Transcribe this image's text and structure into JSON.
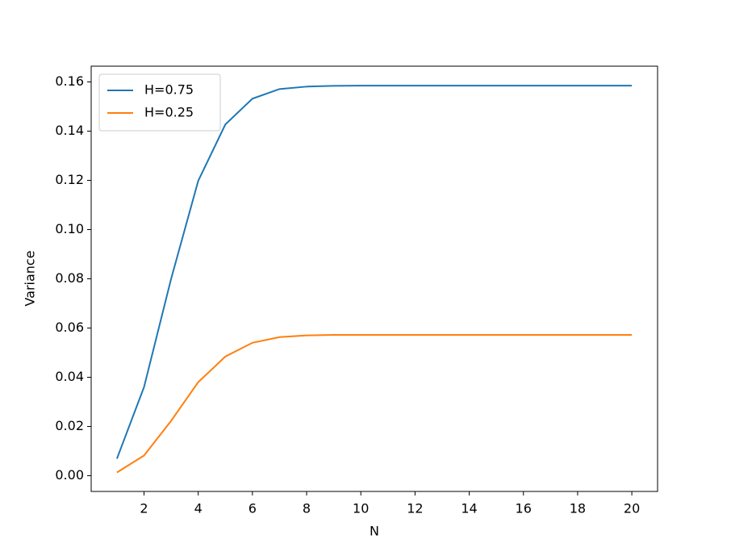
{
  "chart_data": {
    "type": "line",
    "x_label": "N",
    "y_label": "Variance",
    "x": [
      1,
      2,
      3,
      4,
      5,
      6,
      7,
      8,
      9,
      10,
      11,
      12,
      13,
      14,
      15,
      16,
      17,
      18,
      19,
      20
    ],
    "series": [
      {
        "name": "H=0.75",
        "color": "#1f77b4",
        "values": [
          0.0069,
          0.036,
          0.08,
          0.1198,
          0.1427,
          0.1532,
          0.1571,
          0.1581,
          0.1584,
          0.1585,
          0.1585,
          0.1585,
          0.1585,
          0.1585,
          0.1585,
          0.1585,
          0.1585,
          0.1585,
          0.1585,
          0.1585
        ]
      },
      {
        "name": "H=0.25",
        "color": "#ff7f0e",
        "values": [
          0.0013,
          0.0082,
          0.0223,
          0.038,
          0.0484,
          0.054,
          0.0563,
          0.057,
          0.0572,
          0.0572,
          0.0572,
          0.0572,
          0.0572,
          0.0572,
          0.0572,
          0.0572,
          0.0572,
          0.0572,
          0.0572,
          0.0572
        ]
      }
    ],
    "xlim": [
      0.05,
      20.95
    ],
    "xticks": [
      2,
      4,
      6,
      8,
      10,
      12,
      14,
      16,
      18,
      20
    ],
    "ylim": [
      -0.0064,
      0.1664
    ],
    "yticks": [
      {
        "value": 0,
        "label": "0.00"
      },
      0.02,
      0.04,
      0.06,
      0.08,
      {
        "value": 0.1,
        "label": "0.10"
      },
      0.12,
      0.14,
      0.16
    ],
    "legend": "upper left",
    "grid": false
  }
}
